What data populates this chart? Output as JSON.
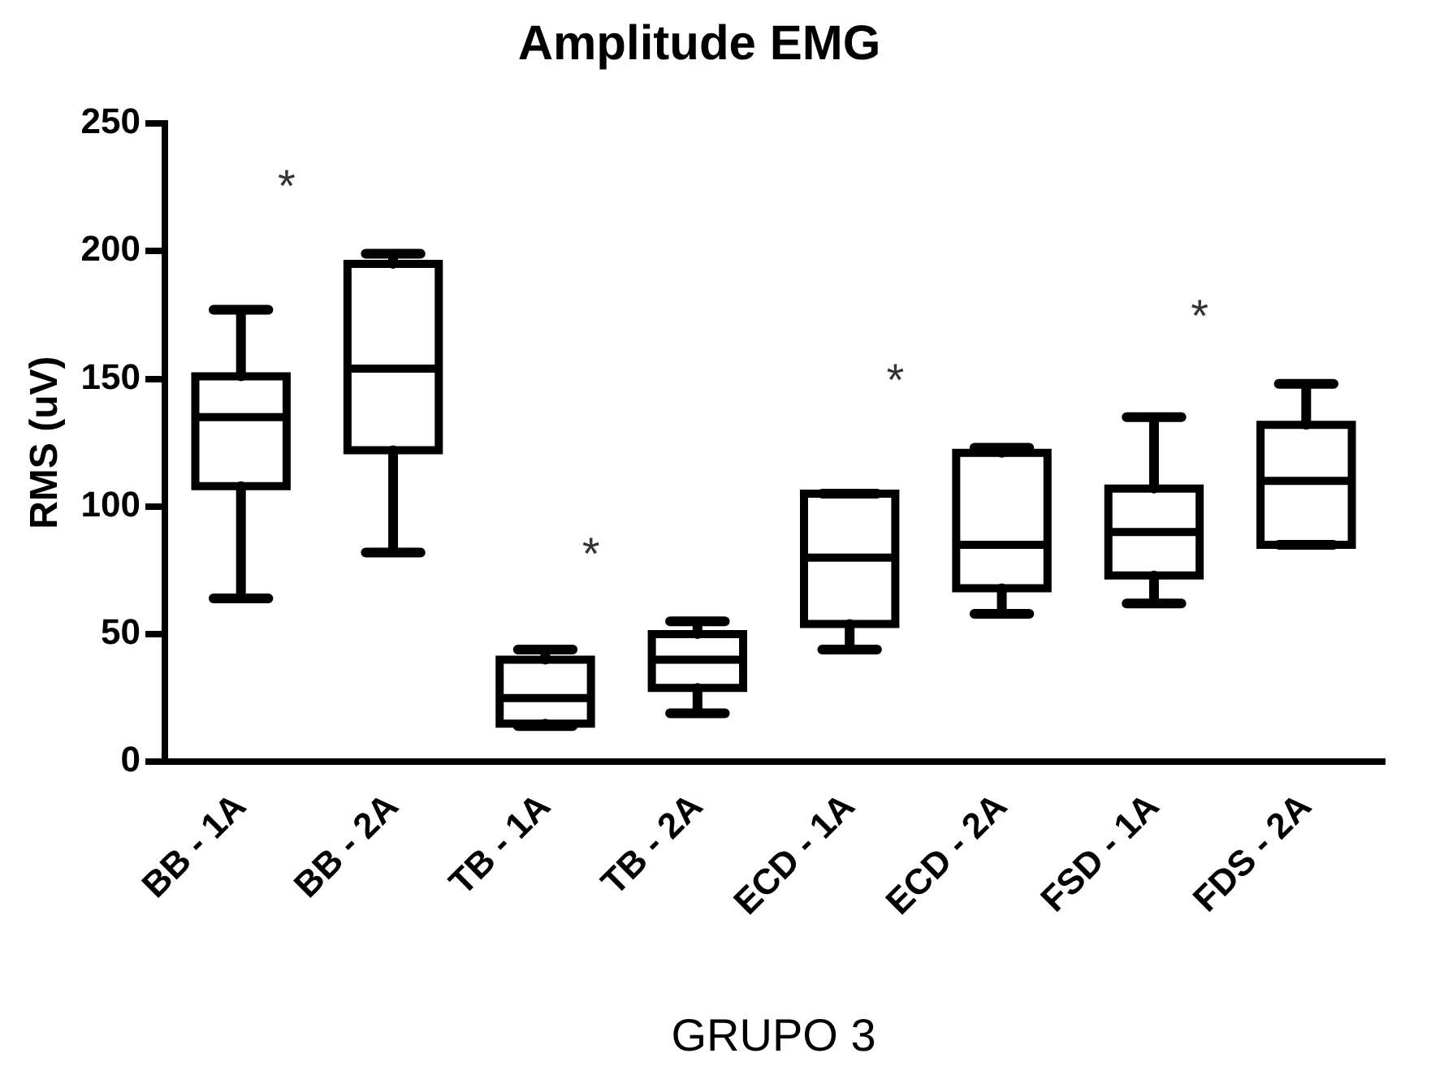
{
  "chart_data": {
    "type": "box",
    "title": "Amplitude EMG",
    "xlabel": "GRUPO 3",
    "ylabel": "RMS (uV)",
    "categories": [
      "BB - 1A",
      "BB - 2A",
      "TB - 1A",
      "TB - 2A",
      "ECD - 1A",
      "ECD - 2A",
      "FSD - 1A",
      "FDS - 2A"
    ],
    "color": "#000000",
    "boxes": [
      {
        "low": 64,
        "q1": 108,
        "median": 135,
        "q3": 151,
        "high": 177
      },
      {
        "low": 82,
        "q1": 122,
        "median": 154,
        "q3": 195,
        "high": 199
      },
      {
        "low": 14,
        "q1": 15,
        "median": 25,
        "q3": 40,
        "high": 44
      },
      {
        "low": 19,
        "q1": 29,
        "median": 40,
        "q3": 50,
        "high": 55
      },
      {
        "low": 44,
        "q1": 54,
        "median": 80,
        "q3": 105,
        "high": 105
      },
      {
        "low": 58,
        "q1": 68,
        "median": 85,
        "q3": 121,
        "high": 123
      },
      {
        "low": 62,
        "q1": 73,
        "median": 90,
        "q3": 107,
        "high": 135
      },
      {
        "low": 85,
        "q1": 85,
        "median": 110,
        "q3": 132,
        "high": 148
      }
    ],
    "ylim": [
      0,
      250
    ],
    "yticks": [
      0,
      50,
      100,
      150,
      200,
      250
    ],
    "grid": false,
    "legend": false,
    "annotations": [
      "*",
      "*",
      "*",
      "*"
    ]
  }
}
